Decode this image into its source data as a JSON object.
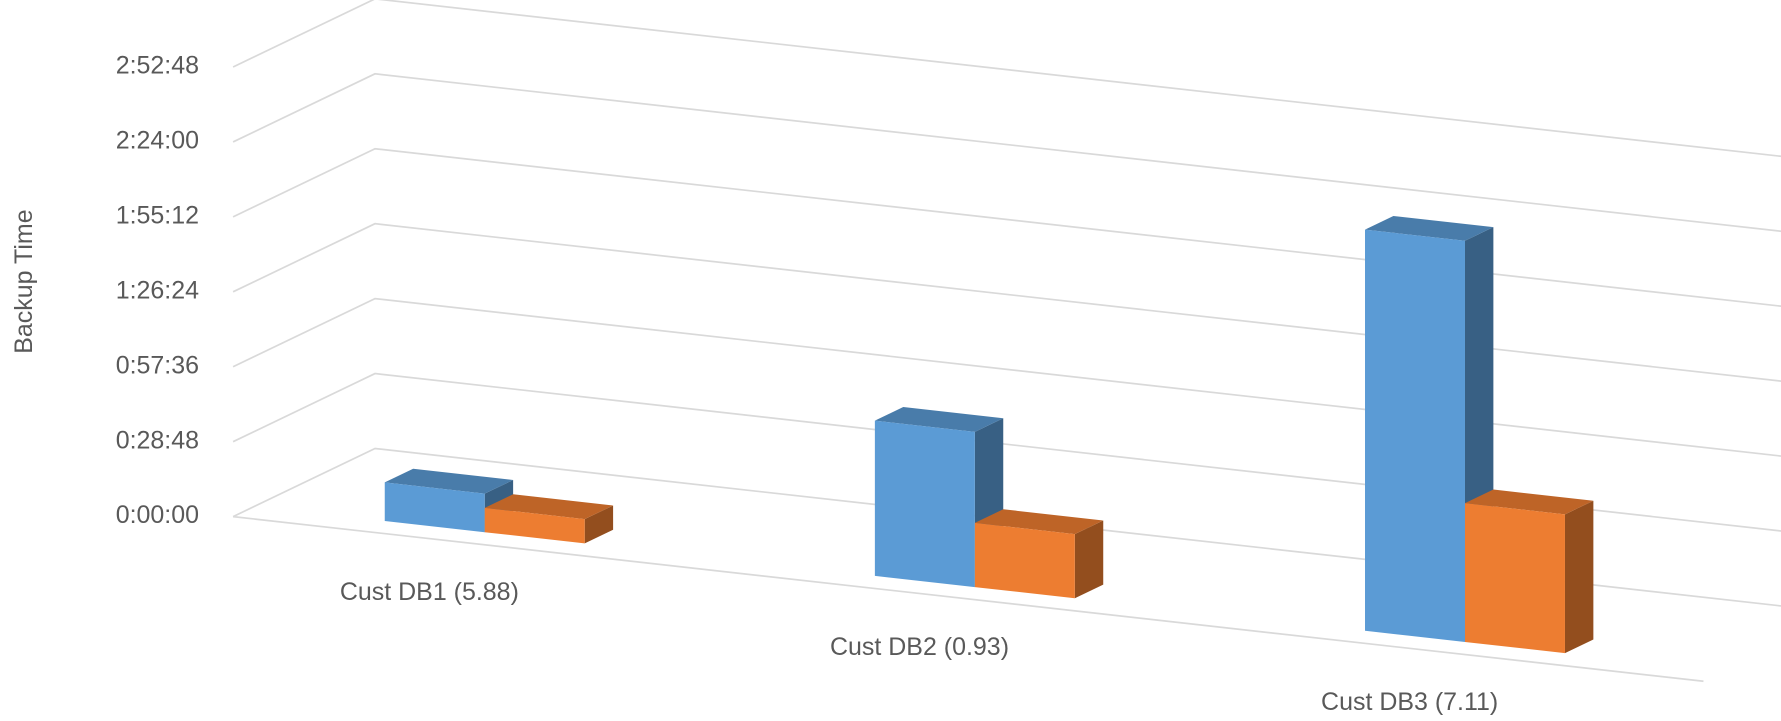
{
  "chart_data": {
    "type": "bar3d",
    "y_label": "Backup Time",
    "categories": [
      "Cust DB1 (5.88)",
      "Cust DB2 (0.93)",
      "Cust DB3 (7.11)"
    ],
    "series": [
      {
        "color": "#5b9bd5",
        "values": [
          890,
          3580,
          9250
        ]
      },
      {
        "color": "#ed7d31",
        "values": [
          560,
          1480,
          3200
        ]
      }
    ],
    "ylim": [
      0,
      10368
    ],
    "yticks": [
      {
        "value": 0,
        "label": "0:00:00"
      },
      {
        "value": 1728,
        "label": "0:28:48"
      },
      {
        "value": 3456,
        "label": "0:57:36"
      },
      {
        "value": 5184,
        "label": "1:26:24"
      },
      {
        "value": 6912,
        "label": "1:55:12"
      },
      {
        "value": 8640,
        "label": "2:24:00"
      },
      {
        "value": 10368,
        "label": "2:52:48"
      }
    ],
    "grid": true
  }
}
